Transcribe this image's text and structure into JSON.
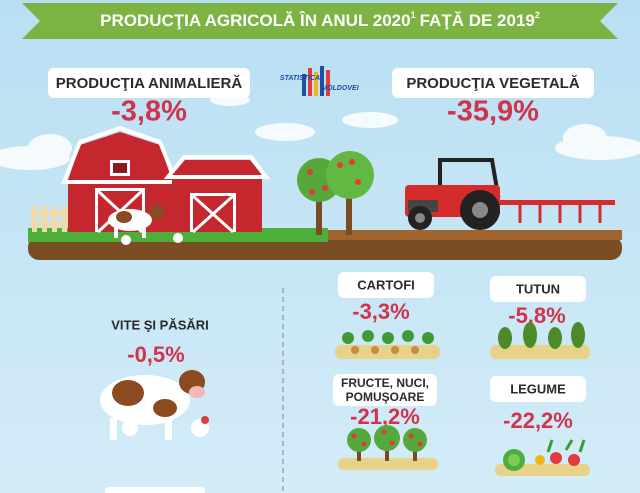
{
  "header": {
    "title": "PRODUCŢIA AGRICOLĂ ÎN ANUL 2020",
    "title_note": "1",
    "title_suffix": "FAŢĂ DE 2019",
    "suffix_note": "2"
  },
  "logo": {
    "line1": "STATISTICA",
    "line2": "MOLDOVEI"
  },
  "sections": [
    {
      "label": "PRODUCŢIA ANIMALIERĂ",
      "change": "-3,8%"
    },
    {
      "label": "PRODUCŢIA VEGETALĂ",
      "change": "-35,9%"
    }
  ],
  "items": [
    {
      "label": [
        "VITE ŞI PĂSĂRI"
      ],
      "change": "-0,5%"
    },
    {
      "label": [
        "CARTOFI"
      ],
      "change": "-3,3%"
    },
    {
      "label": [
        "TUTUN"
      ],
      "change": "-5,8%"
    },
    {
      "label": [
        "FRUCTE, NUCI,",
        "POMUŞOARE"
      ],
      "change": "-21,2%"
    },
    {
      "label": [
        "LEGUME"
      ],
      "change": "-22,2%"
    }
  ]
}
